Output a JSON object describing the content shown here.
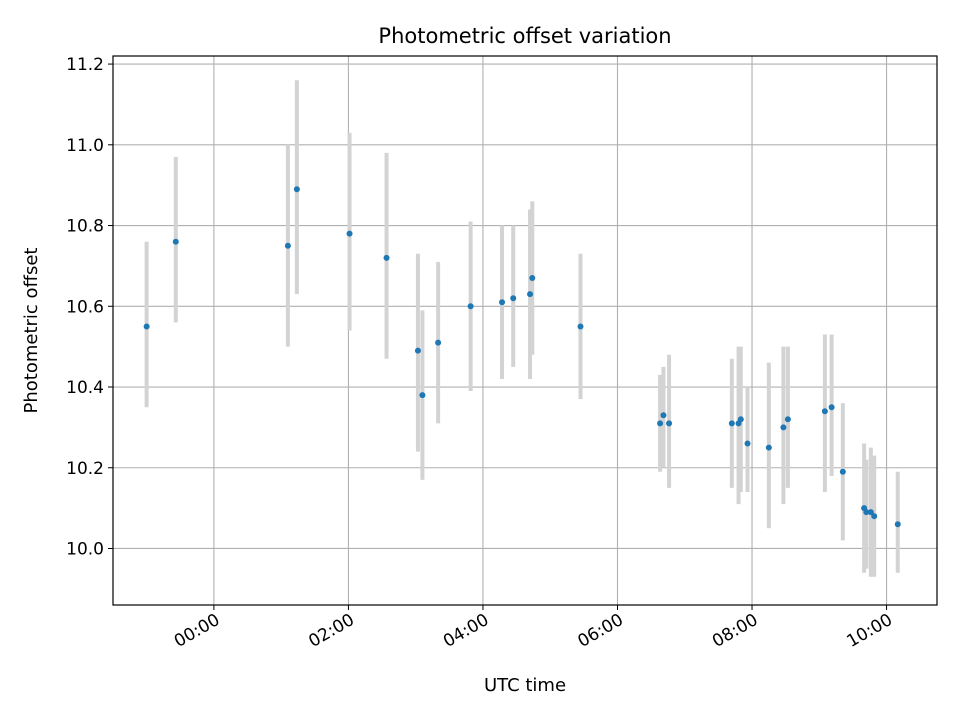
{
  "chart_data": {
    "type": "scatter",
    "title": "Photometric offset variation",
    "xlabel": "UTC time",
    "ylabel": "Photometric offset",
    "grid": true,
    "xlim_hours": [
      -1.5,
      10.75
    ],
    "ylim": [
      9.86,
      11.22
    ],
    "x_ticks": [
      "00:00",
      "02:00",
      "04:00",
      "06:00",
      "08:00",
      "10:00"
    ],
    "y_ticks": [
      "10.0",
      "10.2",
      "10.4",
      "10.6",
      "10.8",
      "11.0",
      "11.2"
    ],
    "colors": {
      "point": "#1f77b4",
      "errorbar": "#d3d3d3",
      "grid": "#b0b0b0"
    },
    "points": [
      {
        "x": "23:00",
        "y": 10.55,
        "ylow": 10.35,
        "yhigh": 10.76
      },
      {
        "x": "23:26",
        "y": 10.76,
        "ylow": 10.56,
        "yhigh": 10.97
      },
      {
        "x": "01:06",
        "y": 10.75,
        "ylow": 10.5,
        "yhigh": 11.0
      },
      {
        "x": "01:14",
        "y": 10.89,
        "ylow": 10.63,
        "yhigh": 11.16
      },
      {
        "x": "02:01",
        "y": 10.78,
        "ylow": 10.54,
        "yhigh": 11.03
      },
      {
        "x": "02:34",
        "y": 10.72,
        "ylow": 10.47,
        "yhigh": 10.98
      },
      {
        "x": "03:02",
        "y": 10.49,
        "ylow": 10.24,
        "yhigh": 10.73
      },
      {
        "x": "03:06",
        "y": 10.38,
        "ylow": 10.17,
        "yhigh": 10.59
      },
      {
        "x": "03:20",
        "y": 10.51,
        "ylow": 10.31,
        "yhigh": 10.71
      },
      {
        "x": "03:49",
        "y": 10.6,
        "ylow": 10.39,
        "yhigh": 10.81
      },
      {
        "x": "04:17",
        "y": 10.61,
        "ylow": 10.42,
        "yhigh": 10.8
      },
      {
        "x": "04:27",
        "y": 10.62,
        "ylow": 10.45,
        "yhigh": 10.8
      },
      {
        "x": "04:42",
        "y": 10.63,
        "ylow": 10.42,
        "yhigh": 10.84
      },
      {
        "x": "04:44",
        "y": 10.67,
        "ylow": 10.48,
        "yhigh": 10.86
      },
      {
        "x": "05:27",
        "y": 10.55,
        "ylow": 10.37,
        "yhigh": 10.73
      },
      {
        "x": "06:38",
        "y": 10.31,
        "ylow": 10.19,
        "yhigh": 10.43
      },
      {
        "x": "06:41",
        "y": 10.33,
        "ylow": 10.2,
        "yhigh": 10.45
      },
      {
        "x": "06:46",
        "y": 10.31,
        "ylow": 10.15,
        "yhigh": 10.48
      },
      {
        "x": "07:42",
        "y": 10.31,
        "ylow": 10.15,
        "yhigh": 10.47
      },
      {
        "x": "07:48",
        "y": 10.31,
        "ylow": 10.11,
        "yhigh": 10.5
      },
      {
        "x": "07:50",
        "y": 10.32,
        "ylow": 10.14,
        "yhigh": 10.5
      },
      {
        "x": "07:56",
        "y": 10.26,
        "ylow": 10.14,
        "yhigh": 10.4
      },
      {
        "x": "08:15",
        "y": 10.25,
        "ylow": 10.05,
        "yhigh": 10.46
      },
      {
        "x": "08:28",
        "y": 10.3,
        "ylow": 10.11,
        "yhigh": 10.5
      },
      {
        "x": "08:32",
        "y": 10.32,
        "ylow": 10.15,
        "yhigh": 10.5
      },
      {
        "x": "09:05",
        "y": 10.34,
        "ylow": 10.14,
        "yhigh": 10.53
      },
      {
        "x": "09:11",
        "y": 10.35,
        "ylow": 10.18,
        "yhigh": 10.53
      },
      {
        "x": "09:21",
        "y": 10.19,
        "ylow": 10.02,
        "yhigh": 10.36
      },
      {
        "x": "09:40",
        "y": 10.1,
        "ylow": 9.94,
        "yhigh": 10.26
      },
      {
        "x": "09:42",
        "y": 10.09,
        "ylow": 9.95,
        "yhigh": 10.22
      },
      {
        "x": "09:46",
        "y": 10.09,
        "ylow": 9.93,
        "yhigh": 10.25
      },
      {
        "x": "09:49",
        "y": 10.08,
        "ylow": 9.93,
        "yhigh": 10.23
      },
      {
        "x": "10:10",
        "y": 10.06,
        "ylow": 9.94,
        "yhigh": 10.19
      }
    ]
  }
}
